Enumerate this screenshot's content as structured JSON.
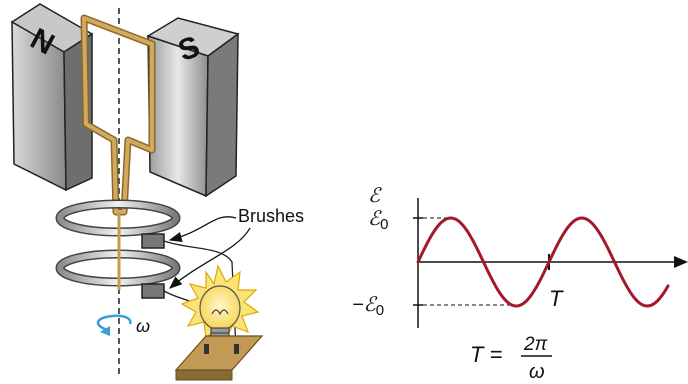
{
  "magnets": {
    "north_label": "N",
    "south_label": "S"
  },
  "generator": {
    "brushes_label": "Brushes",
    "rotation_symbol": "ω"
  },
  "graph": {
    "emf_symbol": "ℰ",
    "emf_max_label": "ℰ",
    "emf_max_subscript": "0",
    "emf_min_prefix": "−ℰ",
    "emf_min_subscript": "0",
    "period_label": "T",
    "formula_lhs": "T = ",
    "formula_numerator": "2π",
    "formula_denominator": "ω"
  },
  "colors": {
    "wire": "#c79a4e",
    "sine": "#a3182a",
    "rotation_arrow": "#3a9ed8",
    "bulb_glow": "#f5c518",
    "base": "#c39a55"
  }
}
